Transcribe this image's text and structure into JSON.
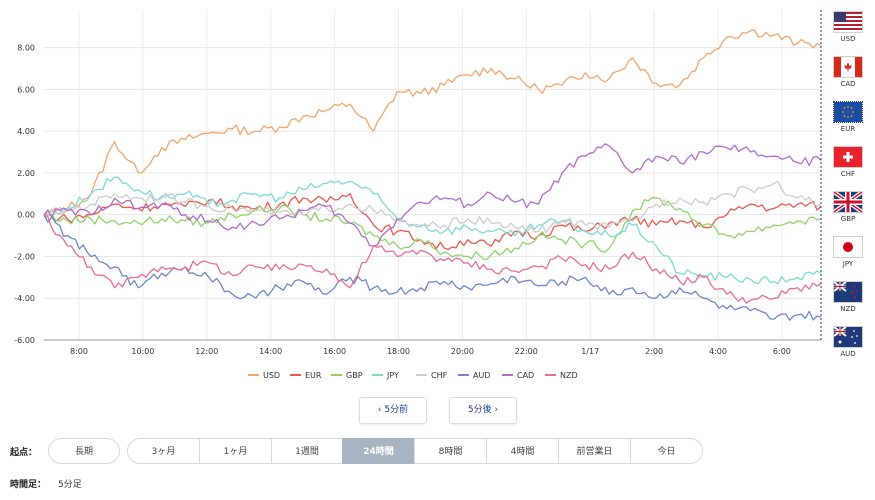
{
  "chart_data": {
    "type": "line",
    "yticks": [
      "8.00",
      "6.00",
      "4.00",
      "2.00",
      "0.00",
      "-2.00",
      "-4.00",
      "-6.00"
    ],
    "ylim": [
      -6.0,
      9.8
    ],
    "xticks": [
      "8:00",
      "10:00",
      "12:00",
      "14:00",
      "16:00",
      "18:00",
      "20:00",
      "22:00",
      "1/17",
      "2:00",
      "4:00",
      "6:00"
    ],
    "grid": true,
    "legend_position": "bottom",
    "series": [
      {
        "name": "USD",
        "color": "#f0a56c",
        "values": [
          0.0,
          0.3,
          1.0,
          3.5,
          2.0,
          3.2,
          3.6,
          3.9,
          4.1,
          4.0,
          4.2,
          4.7,
          5.0,
          5.3,
          4.0,
          5.9,
          5.8,
          6.2,
          6.7,
          7.0,
          6.5,
          6.0,
          6.2,
          6.8,
          6.5,
          7.5,
          6.3,
          6.2,
          7.5,
          8.5,
          8.8,
          8.6,
          8.2,
          8.1
        ]
      },
      {
        "name": "EUR",
        "color": "#e8584e",
        "values": [
          0.0,
          -0.2,
          0.0,
          0.5,
          0.3,
          0.5,
          0.4,
          0.7,
          0.4,
          0.3,
          0.5,
          0.8,
          0.6,
          1.0,
          -0.5,
          -0.8,
          -1.2,
          -1.6,
          -1.2,
          -1.5,
          -0.8,
          -1.0,
          -0.5,
          -0.8,
          -0.4,
          -0.2,
          -0.5,
          -0.3,
          -0.6,
          0.0,
          0.5,
          0.3,
          0.5,
          0.4
        ]
      },
      {
        "name": "GBP",
        "color": "#8fd36a",
        "values": [
          0.0,
          -0.3,
          -0.2,
          -0.3,
          -0.4,
          -0.2,
          -0.3,
          -0.4,
          0.0,
          0.2,
          0.3,
          0.0,
          -0.2,
          -0.4,
          -1.0,
          -1.5,
          -1.2,
          -1.8,
          -2.0,
          -1.9,
          -1.6,
          -1.0,
          -1.2,
          -1.4,
          -1.6,
          0.2,
          0.8,
          0.3,
          -0.5,
          -1.0,
          -0.8,
          -0.5,
          -0.3,
          -0.2
        ]
      },
      {
        "name": "JPY",
        "color": "#7fd9d2",
        "values": [
          0.0,
          0.3,
          1.0,
          1.8,
          1.2,
          0.8,
          1.0,
          0.5,
          0.7,
          1.0,
          0.8,
          1.2,
          1.5,
          1.6,
          1.0,
          -0.2,
          -0.5,
          -0.8,
          -0.6,
          -0.8,
          -1.0,
          -0.5,
          -0.3,
          -0.8,
          -1.0,
          -0.5,
          -1.5,
          -2.8,
          -2.9,
          -3.0,
          -3.1,
          -3.2,
          -3.0,
          -2.8
        ]
      },
      {
        "name": "CHF",
        "color": "#cccccc",
        "values": [
          0.0,
          0.2,
          0.5,
          1.0,
          0.8,
          0.9,
          0.6,
          0.4,
          0.3,
          0.2,
          0.1,
          0.0,
          0.3,
          0.5,
          0.2,
          -0.3,
          -0.6,
          -0.5,
          -0.2,
          -0.4,
          -0.6,
          -0.8,
          -0.3,
          -0.5,
          -0.6,
          -0.3,
          0.5,
          0.8,
          0.6,
          1.0,
          1.2,
          1.5,
          0.8,
          0.5
        ]
      },
      {
        "name": "AUD",
        "color": "#6d87c9",
        "values": [
          0.0,
          -1.0,
          -2.0,
          -2.5,
          -3.5,
          -2.8,
          -2.5,
          -3.0,
          -3.8,
          -4.0,
          -3.5,
          -3.2,
          -3.8,
          -3.0,
          -3.5,
          -3.7,
          -3.5,
          -3.2,
          -3.5,
          -3.3,
          -3.0,
          -3.4,
          -3.2,
          -3.0,
          -3.8,
          -3.5,
          -4.0,
          -3.5,
          -4.0,
          -4.5,
          -4.6,
          -5.0,
          -4.8,
          -4.9
        ]
      },
      {
        "name": "CAD",
        "color": "#b26bcc",
        "values": [
          0.0,
          0.2,
          0.0,
          0.8,
          0.3,
          0.5,
          0.0,
          -0.3,
          -0.6,
          -0.4,
          -0.2,
          0.2,
          0.4,
          -0.4,
          -1.5,
          -0.2,
          0.6,
          0.8,
          0.5,
          1.0,
          0.6,
          0.5,
          2.0,
          2.8,
          3.3,
          2.0,
          2.8,
          2.5,
          3.0,
          3.2,
          3.0,
          2.8,
          2.5,
          2.6
        ]
      },
      {
        "name": "NZD",
        "color": "#e86c9a",
        "values": [
          0.0,
          -1.5,
          -2.5,
          -3.5,
          -3.0,
          -2.5,
          -2.5,
          -2.3,
          -2.9,
          -2.5,
          -2.6,
          -2.4,
          -2.6,
          -3.5,
          -1.5,
          -2.0,
          -1.7,
          -2.2,
          -2.3,
          -2.6,
          -2.7,
          -2.5,
          -2.1,
          -2.4,
          -2.6,
          -1.8,
          -2.6,
          -3.2,
          -3.0,
          -3.8,
          -4.1,
          -4.0,
          -3.5,
          -3.3
        ]
      }
    ]
  },
  "currencies": [
    {
      "code": "USD"
    },
    {
      "code": "CAD"
    },
    {
      "code": "EUR"
    },
    {
      "code": "CHF"
    },
    {
      "code": "GBP"
    },
    {
      "code": "JPY"
    },
    {
      "code": "NZD"
    },
    {
      "code": "AUD"
    }
  ],
  "nav": {
    "prev_label": "‹ 5分前",
    "next_label": "5分後 ›"
  },
  "start_label": "起点：",
  "period_buttons": [
    {
      "label": "長期"
    },
    {
      "label": "3ヶ月"
    },
    {
      "label": "1ヶ月"
    },
    {
      "label": "1週間"
    },
    {
      "label": "24時間",
      "active": true
    },
    {
      "label": "8時間"
    },
    {
      "label": "4時間"
    },
    {
      "label": "前営業日"
    },
    {
      "label": "今日"
    }
  ],
  "timeframe": {
    "label": "時間足：",
    "value": "5分足"
  }
}
